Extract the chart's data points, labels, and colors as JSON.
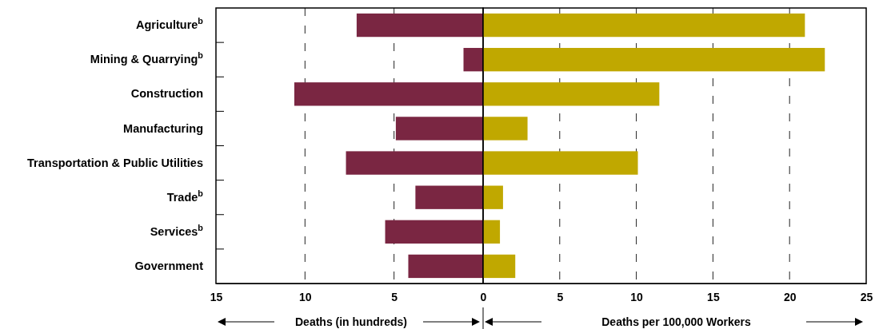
{
  "chart_data": [
    {
      "type": "bar",
      "orientation": "horizontal",
      "categories": [
        "Agriculture$^{b}$",
        "Mining & Quarrying$^{b}$",
        "Construction",
        "Manufacturing",
        "Transportation & Public Utilities",
        "Trade$^{b}$",
        "Services$^{b}$",
        "Government"
      ],
      "series": [
        {
          "color": "#7a2642",
          "values": [
            7.1,
            1.1,
            10.6,
            4.9,
            7.7,
            3.8,
            5.5,
            4.2
          ]
        }
      ],
      "xlim": [
        15,
        0
      ],
      "xticks": [
        15,
        10,
        5,
        {
          "value": 0,
          "label": null
        }
      ],
      "xlabel": "Deaths (in hundreds)",
      "grid": "x"
    },
    {
      "type": "bar",
      "orientation": "horizontal",
      "categories": [
        null,
        null,
        null,
        null,
        null,
        null,
        null,
        null
      ],
      "series": [
        {
          "color": "#c0a800",
          "values": [
            21.0,
            22.3,
            11.5,
            2.9,
            10.1,
            1.3,
            1.1,
            2.1
          ]
        }
      ],
      "xlim": [
        0,
        25
      ],
      "xticks": [
        0,
        5,
        10,
        15,
        20,
        25
      ],
      "xlabel": "Deaths per 100,000 Workers",
      "grid": "x",
      "tick_labels": "x"
    }
  ]
}
